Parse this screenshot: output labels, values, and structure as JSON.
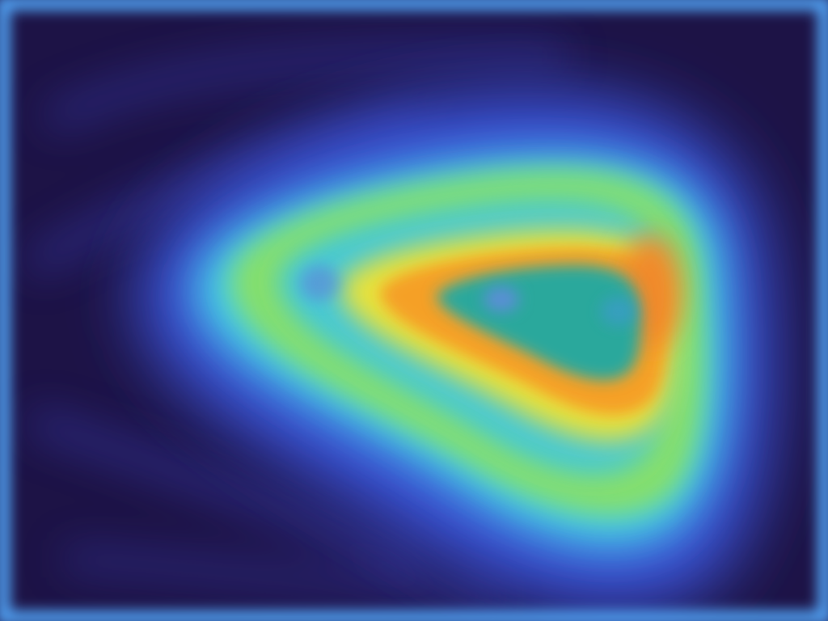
{
  "image": {
    "kind": "attention-heatmap",
    "colormap": "jet",
    "color_stops": {
      "frame": "#4f9ff0",
      "background_dark": "#1d1346",
      "outer_glow": "#3a52d8",
      "band_cyan": "#45d0e6",
      "band_green": "#86df6b",
      "band_yellow": "#e8e23a",
      "hotspot_orange": "#f5a028",
      "core_teal": "#2ca89c",
      "core_spot": "#5a8fd6"
    }
  }
}
